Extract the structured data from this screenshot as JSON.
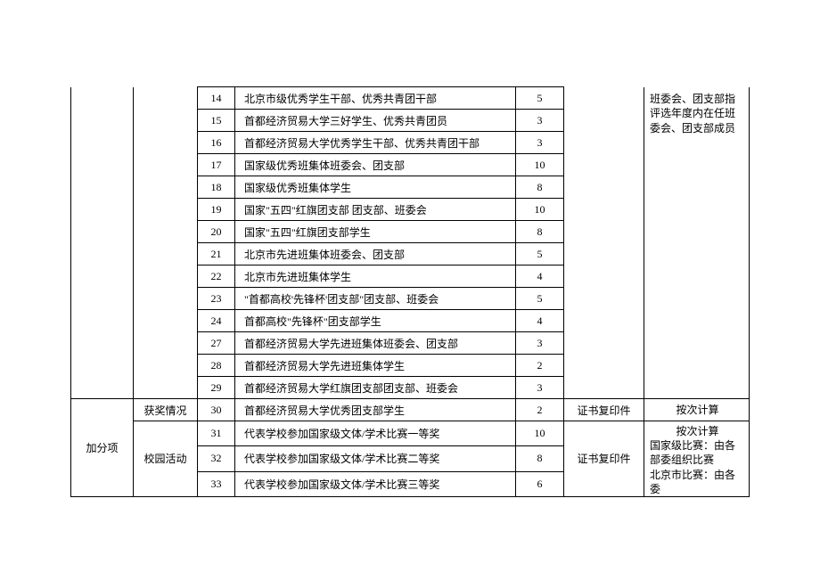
{
  "columns": {
    "widths": {
      "a": 70,
      "b": 72,
      "c": 42,
      "d": 315,
      "e": 54,
      "f": 90,
      "g": 118
    }
  },
  "colors": {
    "border": "#000000",
    "background": "#ffffff",
    "text": "#000000"
  },
  "typography": {
    "font_family": "SimSun",
    "font_size_pt": 10.5,
    "line_height": 1.4
  },
  "upper_block": {
    "rows": [
      {
        "num": "14",
        "desc": "北京市级优秀学生干部、优秀共青团干部",
        "score": "5"
      },
      {
        "num": "15",
        "desc": "首都经济贸易大学三好学生、优秀共青团员",
        "score": "3"
      },
      {
        "num": "16",
        "desc": "首都经济贸易大学优秀学生干部、优秀共青团干部",
        "score": "3"
      },
      {
        "num": "17",
        "desc": "国家级优秀班集体班委会、团支部",
        "score": "10"
      },
      {
        "num": "18",
        "desc": "国家级优秀班集体学生",
        "score": "8"
      },
      {
        "num": "19",
        "desc": "国家\"五四\"红旗团支部 团支部、班委会",
        "score": "10"
      },
      {
        "num": "20",
        "desc": "国家\"五四\"红旗团支部学生",
        "score": "8"
      },
      {
        "num": "21",
        "desc": "北京市先进班集体班委会、团支部",
        "score": "5"
      },
      {
        "num": "22",
        "desc": "北京市先进班集体学生",
        "score": "4"
      },
      {
        "num": "23",
        "desc": "\"首都高校'先锋杯'团支部\"团支部、班委会",
        "score": "5"
      },
      {
        "num": "24",
        "desc": "首都高校\"先锋杯\"团支部学生",
        "score": "4"
      },
      {
        "num": "27",
        "desc": "首都经济贸易大学先进班集体班委会、团支部",
        "score": "3"
      },
      {
        "num": "28",
        "desc": "首都经济贸易大学先进班集体学生",
        "score": "2"
      },
      {
        "num": "29",
        "desc": "首都经济贸易大学红旗团支部团支部、班委会",
        "score": "3"
      }
    ],
    "note_g": "班委会、团支部指评选年度内在任班委会、团支部成员"
  },
  "lower_block": {
    "category": "加分项",
    "award_section": {
      "label": "获奖情况",
      "row": {
        "num": "30",
        "desc": "首都经济贸易大学优秀团支部学生",
        "score": "2",
        "proof": "证书复印件",
        "note": "按次计算"
      }
    },
    "campus_section": {
      "label": "校园活动",
      "rows": [
        {
          "num": "31",
          "desc": "代表学校参加国家级文体/学术比赛一等奖",
          "score": "10"
        },
        {
          "num": "32",
          "desc": "代表学校参加国家级文体/学术比赛二等奖",
          "score": "8"
        },
        {
          "num": "33",
          "desc": "代表学校参加国家级文体/学术比赛三等奖",
          "score": "6"
        }
      ],
      "proof": "证书复印件",
      "note": "按次计算\n国家级比赛：由各部委组织比赛\n北京市比赛：由各委"
    }
  }
}
